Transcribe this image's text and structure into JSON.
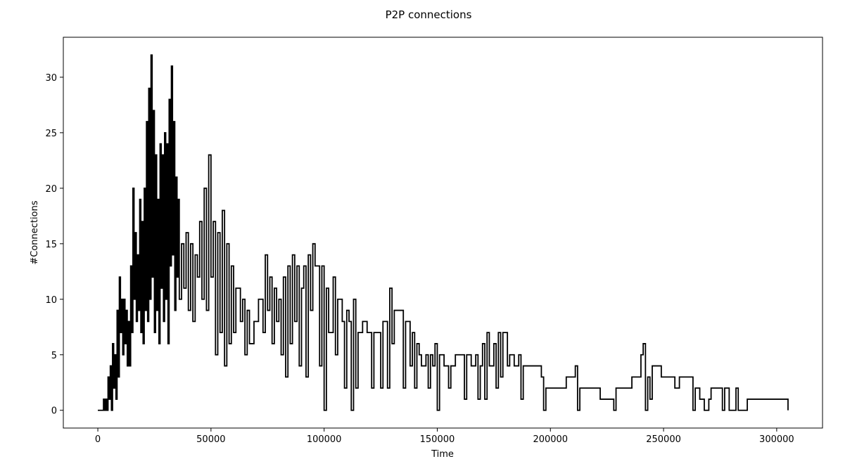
{
  "chart_data": {
    "type": "line",
    "drawstyle": "steps-post",
    "title": "P2P connections",
    "xlabel": "Time",
    "ylabel": "#Connections",
    "color": "#000000",
    "x": [
      0,
      2000,
      2500,
      3000,
      3500,
      4000,
      4500,
      5000,
      5500,
      6000,
      6500,
      7000,
      7500,
      8000,
      8500,
      9000,
      9500,
      10000,
      10500,
      11000,
      11500,
      12000,
      12500,
      13000,
      13500,
      14000,
      14500,
      15000,
      15500,
      16000,
      16500,
      17000,
      17500,
      18000,
      18500,
      19000,
      19500,
      20000,
      20500,
      21000,
      21500,
      22000,
      22500,
      23000,
      23500,
      24000,
      24500,
      25000,
      25500,
      26000,
      26500,
      27000,
      27500,
      28000,
      28500,
      29000,
      29500,
      30000,
      30500,
      31000,
      31500,
      32000,
      32500,
      33000,
      33500,
      34000,
      34500,
      35000,
      35500,
      36000,
      37000,
      38000,
      39000,
      40000,
      41000,
      42000,
      43000,
      44000,
      45000,
      46000,
      47000,
      48000,
      49000,
      50000,
      51000,
      52000,
      53000,
      54000,
      55000,
      56000,
      57000,
      58000,
      59000,
      60000,
      61000,
      63000,
      64000,
      65000,
      66000,
      67000,
      69000,
      71000,
      73000,
      74000,
      75000,
      76000,
      77000,
      78000,
      79000,
      80000,
      81000,
      82000,
      83000,
      84000,
      85000,
      86000,
      87000,
      88000,
      89000,
      90000,
      91000,
      92000,
      93000,
      94000,
      95000,
      96000,
      98000,
      99000,
      100000,
      101000,
      102000,
      104000,
      105000,
      106000,
      108000,
      109000,
      110000,
      111000,
      112000,
      113000,
      114000,
      115000,
      117000,
      119000,
      121000,
      122000,
      125000,
      126000,
      128000,
      129000,
      130000,
      131000,
      133000,
      135000,
      136000,
      138000,
      139000,
      140000,
      141000,
      142000,
      143000,
      145000,
      146000,
      147000,
      148000,
      149000,
      150000,
      151000,
      153000,
      155000,
      156000,
      158000,
      162000,
      163000,
      165000,
      167000,
      168000,
      169000,
      170000,
      171000,
      172000,
      173000,
      175000,
      176000,
      177000,
      178000,
      179000,
      181000,
      182000,
      184000,
      186000,
      187000,
      188000,
      193000,
      196000,
      197000,
      198000,
      200000,
      207000,
      210000,
      211000,
      212000,
      213000,
      218000,
      222000,
      227000,
      228000,
      229000,
      236000,
      239000,
      240000,
      241000,
      242000,
      243000,
      244000,
      245000,
      249000,
      255000,
      257000,
      263000,
      264000,
      266000,
      268000,
      270000,
      271000,
      276000,
      277000,
      279000,
      282000,
      283000,
      287000,
      305000
    ],
    "values": [
      0,
      0,
      1,
      0,
      1,
      0,
      3,
      1,
      4,
      0,
      6,
      2,
      5,
      1,
      9,
      3,
      12,
      7,
      10,
      5,
      10,
      6,
      9,
      4,
      8,
      4,
      13,
      7,
      20,
      10,
      16,
      8,
      14,
      9,
      19,
      7,
      17,
      6,
      20,
      9,
      26,
      8,
      29,
      10,
      32,
      12,
      27,
      7,
      23,
      9,
      19,
      6,
      24,
      11,
      23,
      8,
      25,
      10,
      24,
      6,
      28,
      13,
      31,
      14,
      26,
      9,
      21,
      12,
      19,
      10,
      15,
      11,
      16,
      9,
      15,
      8,
      14,
      12,
      17,
      10,
      20,
      9,
      23,
      12,
      17,
      5,
      16,
      7,
      18,
      4,
      15,
      6,
      13,
      7,
      11,
      8,
      10,
      5,
      9,
      6,
      8,
      10,
      7,
      14,
      9,
      12,
      6,
      11,
      8,
      10,
      5,
      12,
      3,
      13,
      6,
      14,
      8,
      13,
      4,
      11,
      13,
      3,
      14,
      9,
      15,
      13,
      4,
      13,
      0,
      11,
      7,
      12,
      5,
      10,
      8,
      2,
      9,
      8,
      0,
      10,
      2,
      7,
      8,
      7,
      2,
      7,
      2,
      8,
      2,
      11,
      6,
      9,
      9,
      2,
      8,
      4,
      7,
      2,
      6,
      5,
      4,
      5,
      2,
      5,
      4,
      6,
      0,
      5,
      4,
      2,
      4,
      5,
      1,
      5,
      4,
      5,
      1,
      4,
      6,
      1,
      7,
      4,
      6,
      2,
      7,
      3,
      7,
      4,
      5,
      4,
      5,
      1,
      4,
      4,
      3,
      0,
      2,
      2,
      3,
      3,
      4,
      0,
      2,
      2,
      1,
      1,
      0,
      2,
      3,
      3,
      5,
      6,
      0,
      3,
      1,
      4,
      3,
      2,
      3,
      0,
      2,
      1,
      0,
      1,
      2,
      0,
      2,
      0,
      2,
      0,
      1,
      0
    ],
    "xlim": [
      -15250,
      320250
    ],
    "ylim": [
      -1.6,
      33.6
    ],
    "xticks": [
      0,
      50000,
      100000,
      150000,
      200000,
      250000,
      300000
    ],
    "yticks": [
      0,
      5,
      10,
      15,
      20,
      25,
      30
    ]
  }
}
